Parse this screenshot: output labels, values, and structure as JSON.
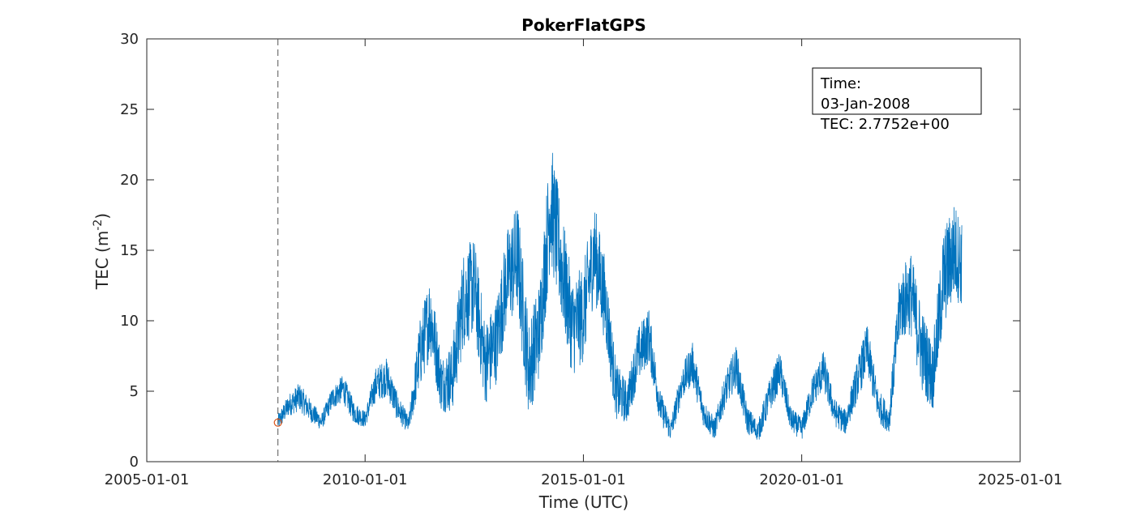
{
  "chart_data": {
    "type": "line",
    "title": "PokerFlatGPS",
    "xlabel": "Time (UTC)",
    "ylabel": "TEC (m",
    "ylabel_exponent": "-2",
    "ylabel_close": ")",
    "x_domain": [
      "2005-01-01",
      "2025-01-01"
    ],
    "xlim": [
      "2005-01-01",
      "2025-01-01"
    ],
    "ylim": [
      0,
      30
    ],
    "x_ticks": [
      "2005-01-01",
      "2010-01-01",
      "2015-01-01",
      "2020-01-01",
      "2025-01-01"
    ],
    "y_ticks": [
      0,
      5,
      10,
      15,
      20,
      25,
      30
    ],
    "grid": false,
    "line_color": "#0072BD",
    "marker_color": "#D95319",
    "series": [
      {
        "x": [
          "2008-01-03",
          "2008-04-01",
          "2008-07-01",
          "2008-10-01",
          "2009-01-01",
          "2009-04-01",
          "2009-07-01",
          "2009-10-01",
          "2010-01-01",
          "2010-04-01",
          "2010-07-01",
          "2010-10-01",
          "2011-01-01",
          "2011-04-01",
          "2011-07-01",
          "2011-10-01",
          "2012-01-01",
          "2012-04-01",
          "2012-07-01",
          "2012-10-01",
          "2013-01-01",
          "2013-04-01",
          "2013-07-01",
          "2013-10-01",
          "2014-01-01",
          "2014-04-01",
          "2014-07-01",
          "2014-10-01",
          "2015-01-01",
          "2015-04-01",
          "2015-07-01",
          "2015-10-01",
          "2016-01-01",
          "2016-04-01",
          "2016-07-01",
          "2016-10-01",
          "2017-01-01",
          "2017-04-01",
          "2017-07-01",
          "2017-10-01",
          "2018-01-01",
          "2018-04-01",
          "2018-07-01",
          "2018-10-01",
          "2019-01-01",
          "2019-04-01",
          "2019-07-01",
          "2019-10-01",
          "2020-01-01",
          "2020-04-01",
          "2020-07-01",
          "2020-10-01",
          "2021-01-01",
          "2021-04-01",
          "2021-07-01",
          "2021-10-01",
          "2022-01-01",
          "2022-04-01",
          "2022-07-01",
          "2022-10-01",
          "2023-01-01",
          "2023-04-01",
          "2023-07-01",
          "2023-09-01"
        ],
        "y": [
          2.78,
          4.0,
          4.6,
          3.6,
          2.8,
          4.5,
          5.2,
          3.5,
          3.0,
          5.5,
          6.0,
          3.8,
          2.6,
          7.5,
          10.5,
          5.5,
          6.0,
          11.5,
          12.5,
          7.0,
          8.5,
          13.0,
          14.5,
          6.5,
          9.5,
          18.5,
          14.0,
          9.5,
          10.5,
          15.0,
          11.5,
          5.0,
          4.2,
          7.5,
          9.0,
          4.0,
          2.2,
          5.5,
          7.0,
          3.5,
          2.3,
          5.0,
          6.8,
          3.0,
          2.1,
          4.5,
          6.5,
          3.0,
          2.3,
          5.0,
          6.5,
          3.5,
          2.8,
          5.5,
          8.0,
          4.0,
          3.0,
          11.0,
          12.0,
          8.0,
          6.0,
          13.0,
          15.0,
          14.0
        ],
        "noise_amplitude": [
          0.6,
          0.8,
          1.0,
          0.8,
          0.6,
          0.8,
          1.0,
          0.8,
          0.6,
          1.2,
          1.4,
          1.0,
          0.6,
          2.5,
          3.0,
          2.0,
          2.5,
          3.5,
          3.5,
          3.0,
          3.0,
          3.5,
          4.0,
          3.5,
          3.5,
          4.5,
          4.0,
          3.5,
          3.5,
          3.5,
          3.0,
          2.0,
          1.5,
          2.0,
          2.0,
          1.2,
          0.8,
          1.2,
          1.5,
          1.0,
          0.8,
          1.2,
          1.5,
          1.0,
          0.8,
          1.2,
          1.4,
          0.9,
          0.8,
          1.2,
          1.4,
          1.0,
          0.9,
          1.4,
          1.8,
          1.2,
          1.0,
          2.5,
          3.0,
          3.0,
          2.5,
          3.5,
          3.5,
          3.0
        ]
      }
    ],
    "highlight_point": {
      "x": "2008-01-03",
      "y": 2.7752
    },
    "annotation": {
      "line1": "Time:",
      "line2": "03-Jan-2008",
      "line3": "TEC: 2.7752e+00"
    }
  }
}
